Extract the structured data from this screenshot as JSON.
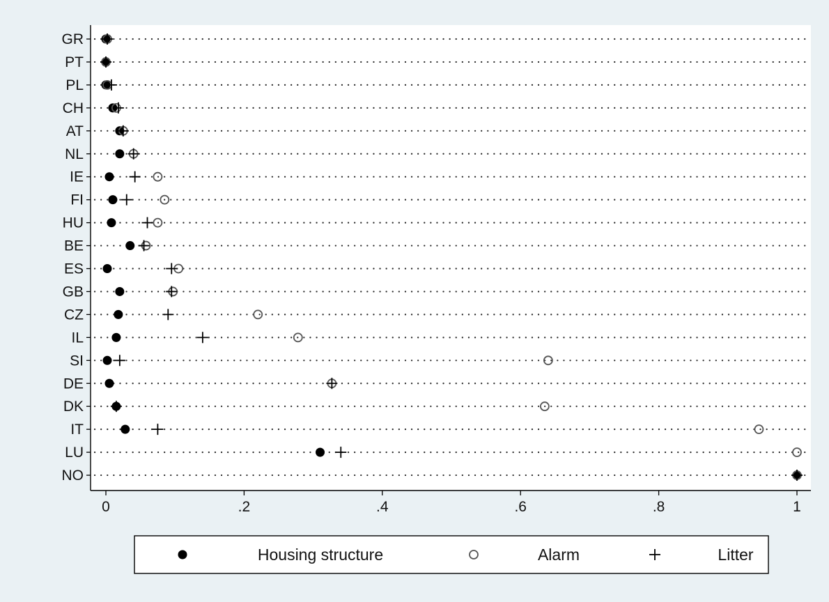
{
  "chart_data": {
    "type": "scatter",
    "orientation": "horizontal-dot-plot",
    "title": "",
    "xlabel": "",
    "ylabel": "",
    "xlim": [
      0,
      1
    ],
    "x_ticks": [
      0,
      0.2,
      0.4,
      0.6,
      0.8,
      1
    ],
    "x_tick_labels": [
      "0",
      ".2",
      ".4",
      ".6",
      ".8",
      "1"
    ],
    "grid": "dotted horizontal guide lines per category",
    "legend_position": "bottom",
    "categories": [
      "GR",
      "PT",
      "PL",
      "CH",
      "AT",
      "NL",
      "IE",
      "FI",
      "HU",
      "BE",
      "ES",
      "GB",
      "CZ",
      "IL",
      "SI",
      "DE",
      "DK",
      "IT",
      "LU",
      "NO"
    ],
    "series": [
      {
        "name": "Housing structure",
        "marker": "filled-circle",
        "values": [
          0.0,
          0.0,
          0.0,
          0.01,
          0.02,
          0.02,
          0.005,
          0.01,
          0.008,
          0.035,
          0.002,
          0.02,
          0.018,
          0.015,
          0.002,
          0.005,
          0.015,
          0.028,
          0.31,
          1.0
        ]
      },
      {
        "name": "Alarm",
        "marker": "hollow-circle",
        "values": [
          0.002,
          0.0,
          0.002,
          0.015,
          0.025,
          0.04,
          0.075,
          0.085,
          0.075,
          0.058,
          0.105,
          0.097,
          0.22,
          0.278,
          0.64,
          0.327,
          0.635,
          0.945,
          1.0,
          1.0
        ]
      },
      {
        "name": "Litter",
        "marker": "plus",
        "values": [
          0.002,
          0.0,
          0.008,
          0.018,
          0.025,
          0.04,
          0.042,
          0.03,
          0.06,
          0.055,
          0.095,
          0.095,
          0.09,
          0.14,
          0.02,
          0.327,
          0.015,
          0.075,
          0.34,
          1.0
        ]
      }
    ]
  },
  "colors": {
    "page_background": "#eaf1f4",
    "plot_background": "#ffffff",
    "marker": "#000000",
    "hollow_marker": "#555555",
    "guide_dots": "#222222"
  }
}
